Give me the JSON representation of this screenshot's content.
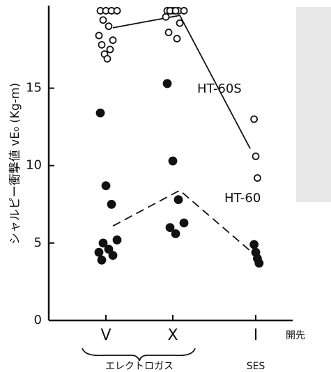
{
  "chart_data": {
    "type": "scatter",
    "y_label": "シャルピー衝撃値 vE₀ (Kg-m)",
    "x_label": "開先",
    "categories": [
      "V",
      "X",
      "I"
    ],
    "groups": [
      {
        "label": "エレクトロガス"
      },
      {
        "label": "SES"
      }
    ],
    "ylim": [
      0,
      20.2
    ],
    "yticks": [
      0,
      5,
      10,
      15
    ],
    "series": [
      {
        "name": "HT-60S",
        "marker": "open",
        "color": "#111111",
        "line_style": "solid",
        "values": [
          [
            20,
            20,
            20,
            20,
            19.4,
            19.0,
            18.4,
            18.1,
            17.8,
            17.5,
            17.2,
            16.9
          ],
          [
            20,
            20,
            20,
            20,
            20,
            20,
            19.6,
            19.2,
            18.6,
            18.2
          ],
          [
            13.0,
            10.6,
            9.2
          ]
        ],
        "line": [
          18.9,
          19.7,
          11.1
        ]
      },
      {
        "name": "HT-60",
        "marker": "filled",
        "color": "#111111",
        "line_style": "dashed",
        "values": [
          [
            13.4,
            8.7,
            7.5,
            5.2,
            5.0,
            4.6,
            4.4,
            4.2,
            3.9
          ],
          [
            15.3,
            10.3,
            7.8,
            6.3,
            6.0,
            5.6
          ],
          [
            4.9,
            4.4,
            4.0,
            3.7
          ]
        ],
        "line": [
          6.1,
          8.4,
          4.5
        ]
      }
    ]
  }
}
